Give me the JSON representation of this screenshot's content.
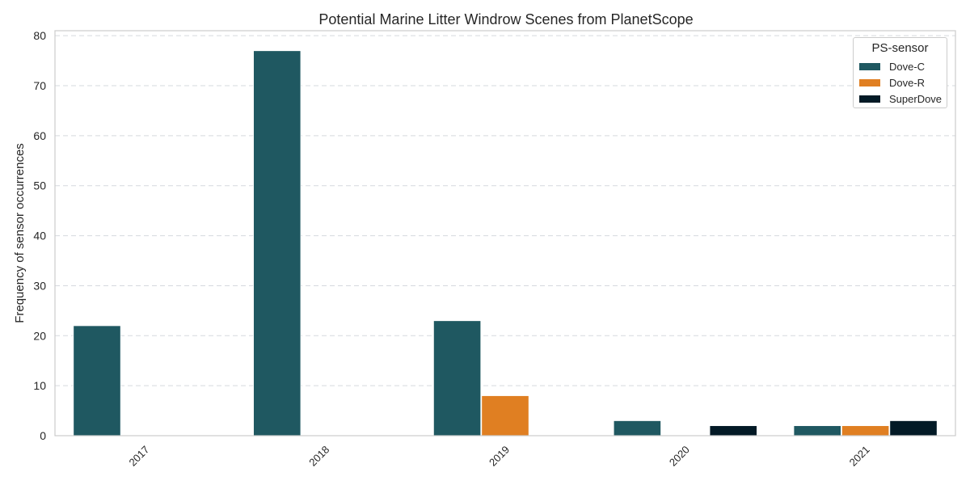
{
  "chart_data": {
    "type": "bar",
    "title": "Potential Marine Litter Windrow Scenes from PlanetScope",
    "xlabel": "",
    "ylabel": "Frequency of sensor occurrences",
    "categories": [
      "2017",
      "2018",
      "2019",
      "2020",
      "2021"
    ],
    "ylim": [
      0,
      81
    ],
    "yticks": [
      0,
      10,
      20,
      30,
      40,
      50,
      60,
      70,
      80
    ],
    "grid": "horizontal-dashed",
    "legend": {
      "title": "PS-sensor",
      "placement": "top-right"
    },
    "series": [
      {
        "name": "Dove-C",
        "color": "#1f5861",
        "values": [
          22,
          77,
          23,
          3,
          2
        ]
      },
      {
        "name": "Dove-R",
        "color": "#e07f22",
        "values": [
          0,
          0,
          8,
          0,
          2
        ]
      },
      {
        "name": "SuperDove",
        "color": "#031a26",
        "values": [
          0,
          0,
          0,
          2,
          3
        ]
      }
    ]
  }
}
